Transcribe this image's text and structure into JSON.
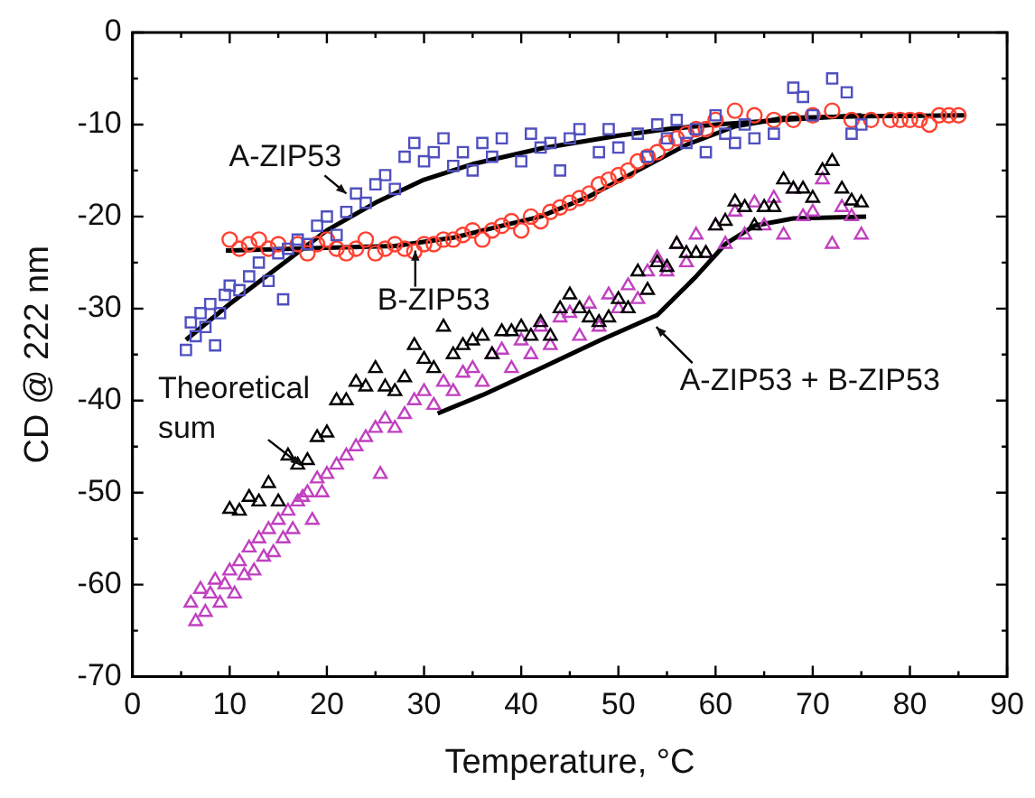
{
  "chart_data": {
    "type": "scatter",
    "xlabel": "Temperature, °C",
    "ylabel": "CD @ 222 nm",
    "xlim": [
      0,
      90
    ],
    "ylim": [
      -70,
      0
    ],
    "xticks": [
      0,
      {
        "value": 5,
        "label": null
      },
      10,
      {
        "value": 15,
        "label": null
      },
      20,
      {
        "value": 25,
        "label": null
      },
      30,
      {
        "value": 35,
        "label": null
      },
      40,
      {
        "value": 45,
        "label": null
      },
      50,
      {
        "value": 55,
        "label": null
      },
      60,
      {
        "value": 65,
        "label": null
      },
      70,
      {
        "value": 75,
        "label": null
      },
      80,
      {
        "value": 85,
        "label": null
      },
      90
    ],
    "yticks": [
      -70,
      {
        "value": -65,
        "label": null
      },
      -60,
      {
        "value": -55,
        "label": null
      },
      -50,
      {
        "value": -45,
        "label": null
      },
      -40,
      {
        "value": -35,
        "label": null
      },
      -30,
      {
        "value": -25,
        "label": null
      },
      -20,
      {
        "value": -15,
        "label": null
      },
      -10,
      {
        "value": -5,
        "label": null
      },
      0
    ],
    "grid": false,
    "legend": false,
    "annotations": [
      {
        "text": "A-ZIP53",
        "x": 22,
        "y": -17.5
      },
      {
        "text": "B-ZIP53",
        "x": 29.1,
        "y": -23.7
      },
      {
        "text": "Theoretical sum",
        "x": 17.3,
        "y": -47
      },
      {
        "text": "A-ZIP53 + B-ZIP53",
        "x": 53.9,
        "y": -32
      }
    ],
    "series": [
      {
        "type": "scatter",
        "marker": "square",
        "color": "#5050c0",
        "x": [
          5.5,
          6,
          6.5,
          7,
          7.5,
          8,
          8.5,
          9,
          9.5,
          10,
          11,
          12,
          13,
          14,
          15,
          15.5,
          16,
          17,
          18,
          19,
          20,
          21,
          22,
          23,
          24,
          25,
          26,
          27,
          28,
          29,
          30,
          31,
          32,
          33,
          34,
          35,
          36,
          37,
          38,
          40,
          41,
          42,
          43,
          44,
          45,
          46,
          48,
          49,
          50,
          52,
          53,
          54,
          55,
          56,
          57,
          58,
          59,
          60,
          61,
          62,
          63,
          64,
          66,
          68,
          69,
          70,
          72,
          73.5,
          74,
          75
        ],
        "values": [
          -34.5,
          -31.5,
          -33,
          -30.5,
          -32,
          -29.5,
          -34,
          -30.5,
          -28.5,
          -27.5,
          -28,
          -26.5,
          -25,
          -27,
          -24,
          -29,
          -23.5,
          -22.5,
          -23,
          -21,
          -20,
          -22,
          -19.5,
          -17.5,
          -18.5,
          -16.5,
          -15.5,
          -17,
          -13.5,
          -12,
          -14,
          -13,
          -11.5,
          -14.5,
          -13,
          -15,
          -12,
          -13.5,
          -11.5,
          -14,
          -11,
          -12.5,
          -12,
          -15,
          -11.5,
          -10.5,
          -13,
          -10.5,
          -12.5,
          -11,
          -13.5,
          -10,
          -11.5,
          -9.5,
          -12,
          -10.5,
          -13,
          -9,
          -11,
          -12,
          -10,
          -11.5,
          -11,
          -6,
          -7,
          -9,
          -5,
          -6.5,
          -11,
          -10
        ]
      },
      {
        "type": "scatter",
        "marker": "circle",
        "color": "#ff4030",
        "x": [
          10,
          11,
          12,
          13,
          14,
          15,
          17,
          18,
          19,
          20,
          21,
          22,
          23,
          24,
          25,
          26,
          27,
          28,
          29,
          30,
          31,
          32,
          33,
          34,
          35,
          36,
          37,
          38,
          39,
          40,
          41,
          42,
          43,
          44,
          45,
          46,
          47,
          48,
          49,
          50,
          51,
          52,
          53,
          54,
          55,
          56,
          57,
          58,
          59,
          60,
          62,
          64,
          66,
          68,
          70,
          72,
          74,
          76,
          78,
          79,
          80,
          81,
          82,
          83,
          84,
          85
        ],
        "values": [
          -22.5,
          -23.5,
          -23,
          -22.5,
          -23.5,
          -23,
          -23,
          -24,
          -23,
          -22.5,
          -23.5,
          -24,
          -23.5,
          -22.5,
          -24,
          -23.5,
          -23,
          -23.5,
          -23.8,
          -23,
          -23,
          -22.5,
          -22.5,
          -22,
          -21.5,
          -22.5,
          -21.5,
          -21,
          -20.5,
          -21.5,
          -20,
          -20.5,
          -19.5,
          -19,
          -18.5,
          -18,
          -17.5,
          -16.5,
          -16,
          -15.5,
          -15,
          -14,
          -13.5,
          -13,
          -12,
          -11.5,
          -11,
          -10.5,
          -10.5,
          -9.5,
          -8.5,
          -9,
          -9.5,
          -9.5,
          -9,
          -8.5,
          -9.5,
          -9.5,
          -9.5,
          -9.5,
          -9.5,
          -9.5,
          -10,
          -9,
          -9,
          -9
        ]
      },
      {
        "type": "scatter",
        "marker": "triangle",
        "color": "#000000",
        "x": [
          10,
          11,
          12,
          13,
          14,
          15,
          16,
          17,
          18,
          19,
          20,
          21,
          22,
          23,
          24,
          25,
          26,
          27,
          28,
          29,
          30,
          31,
          32,
          33,
          34,
          35,
          36,
          37,
          38,
          39,
          40,
          41,
          42,
          43,
          44,
          45,
          46,
          47,
          48,
          49,
          50,
          51,
          52,
          53,
          54,
          55,
          56,
          57,
          58,
          59,
          60,
          61,
          62,
          63,
          64,
          65,
          66,
          67,
          68,
          69,
          70,
          71,
          72,
          73,
          74,
          75
        ],
        "values": [
          -51.8,
          -52,
          -50.5,
          -51,
          -49,
          -51,
          -46,
          -47,
          -46.5,
          -44,
          -43.5,
          -40,
          -40,
          -38,
          -38.5,
          -36.5,
          -38.5,
          -39,
          -37.5,
          -34,
          -35.5,
          -36.5,
          -32,
          -35,
          -34,
          -33.5,
          -33,
          -35,
          -32.5,
          -32.5,
          -32,
          -33,
          -31.5,
          -33,
          -30,
          -28.5,
          -30,
          -31,
          -31.5,
          -31,
          -29,
          -30,
          -26,
          -28,
          -25,
          -25.5,
          -23,
          -24,
          -24,
          -24,
          -21,
          -20.5,
          -18.4,
          -19,
          -21,
          -19,
          -19,
          -16,
          -17,
          -17,
          -18,
          -15,
          -14,
          -17,
          -18.3,
          -18.5
        ]
      },
      {
        "type": "scatter",
        "marker": "triangle",
        "color": "#c040c0",
        "x": [
          6,
          6.5,
          7,
          7.5,
          8,
          8.5,
          9,
          9.5,
          10,
          10.5,
          11,
          11.5,
          12,
          12.5,
          13,
          13.5,
          14,
          14.5,
          15,
          15.5,
          16,
          16.5,
          17,
          17.5,
          18,
          18.5,
          19,
          19.5,
          20,
          21,
          22,
          23,
          24,
          25,
          25.5,
          26,
          27,
          28,
          29,
          30,
          31,
          32,
          33,
          34,
          35,
          36,
          37,
          38,
          39,
          40,
          41,
          42,
          43,
          44,
          45,
          46,
          47,
          48,
          49,
          50,
          51,
          52,
          53,
          54,
          55,
          56,
          57,
          58,
          59,
          60,
          61,
          62,
          63,
          64,
          65,
          66,
          67,
          68,
          69,
          70,
          71,
          72,
          73,
          74,
          75
        ],
        "values": [
          -62,
          -64,
          -60.5,
          -63,
          -61,
          -59.5,
          -62,
          -60,
          -58.5,
          -61,
          -57.5,
          -59,
          -56,
          -58.5,
          -55,
          -57,
          -54,
          -56.5,
          -53,
          -55,
          -52,
          -54,
          -51,
          -50.5,
          -50,
          -53,
          -48.5,
          -50,
          -48,
          -47,
          -46,
          -45,
          -44,
          -43,
          -48,
          -42,
          -43,
          -41.5,
          -40,
          -39,
          -40.5,
          -38,
          -39,
          -37,
          -36.5,
          -38,
          -35,
          -34.5,
          -36.5,
          -33.5,
          -35,
          -32,
          -34,
          -31,
          -30.5,
          -33,
          -29.5,
          -32,
          -28.5,
          -30,
          -27.5,
          -29,
          -26,
          -24.5,
          -26,
          -23,
          -25,
          -22,
          -24,
          -21,
          -23,
          -19.5,
          -22,
          -18.5,
          -21,
          -18,
          -22,
          -17,
          -20,
          -19.5,
          -16,
          -23,
          -19,
          -20,
          -22
        ]
      },
      {
        "type": "line",
        "marker": "none",
        "color": "#000000",
        "x": [
          5.5,
          10,
          15,
          20,
          25,
          30,
          35,
          42,
          50,
          55,
          60,
          67,
          75
        ],
        "values": [
          -33.4,
          -29.5,
          -25.5,
          -21.5,
          -18.5,
          -16,
          -14.3,
          -12.6,
          -11.2,
          -10.5,
          -10,
          -9.5,
          -9
        ]
      },
      {
        "type": "line",
        "marker": "none",
        "color": "#000000",
        "x": [
          9.6,
          20,
          27,
          33,
          38,
          42,
          47,
          52,
          57,
          62,
          67,
          75,
          85.6
        ],
        "values": [
          -23.7,
          -23.4,
          -23.2,
          -22.3,
          -21,
          -20,
          -17.8,
          -15,
          -12.2,
          -10.2,
          -9.3,
          -9.1,
          -9
        ]
      },
      {
        "type": "line",
        "marker": "none",
        "color": "#000000",
        "x": [
          31.4,
          36,
          42,
          48,
          54,
          58,
          61,
          64,
          68,
          75.5
        ],
        "values": [
          -41.4,
          -39.4,
          -36.5,
          -33.5,
          -30.7,
          -26.5,
          -23,
          -21,
          -20.2,
          -20
        ]
      }
    ]
  }
}
